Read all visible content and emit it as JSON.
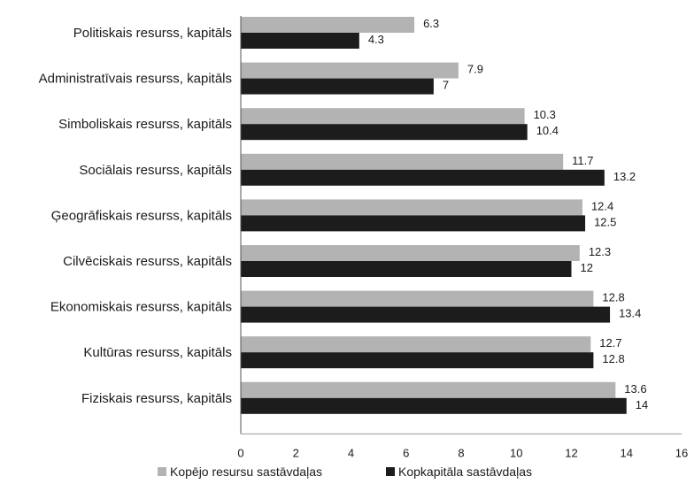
{
  "chart_data": {
    "type": "bar",
    "orientation": "horizontal",
    "categories": [
      "Politiskais resurss, kapitāls",
      "Administratīvais resurss, kapitāls",
      "Simboliskais resurss, kapitāls",
      "Sociālais resurss, kapitāls",
      "Ģeogrāfiskais resurss, kapitāls",
      "Cilvēciskais resurss, kapitāls",
      "Ekonomiskais resurss, kapitāls",
      "Kultūras resurss, kapitāls",
      "Fiziskais resurss, kapitāls"
    ],
    "series": [
      {
        "name": "Kopējo resursu sastāvdaļas",
        "color": "#b3b3b3",
        "values": [
          6.3,
          7.9,
          10.3,
          11.7,
          12.4,
          12.3,
          12.8,
          12.7,
          13.6
        ],
        "labels": [
          "6.3",
          "7.9",
          "10.3",
          "11.7",
          "12.4",
          "12.3",
          "12.8",
          "12.7",
          "13.6"
        ]
      },
      {
        "name": "Kopkapitāla sastāvdaļas",
        "color": "#1c1c1c",
        "values": [
          4.3,
          7,
          10.4,
          13.2,
          12.5,
          12,
          13.4,
          12.8,
          14
        ],
        "labels": [
          "4.3",
          "7",
          "10.4",
          "13.2",
          "12.5",
          "12",
          "13.4",
          "12.8",
          "14"
        ]
      }
    ],
    "xlim": [
      0,
      16
    ],
    "xticks": [
      "0",
      "2",
      "4",
      "6",
      "8",
      "10",
      "12",
      "14",
      "16"
    ],
    "grid": false,
    "legend_position": "bottom"
  }
}
